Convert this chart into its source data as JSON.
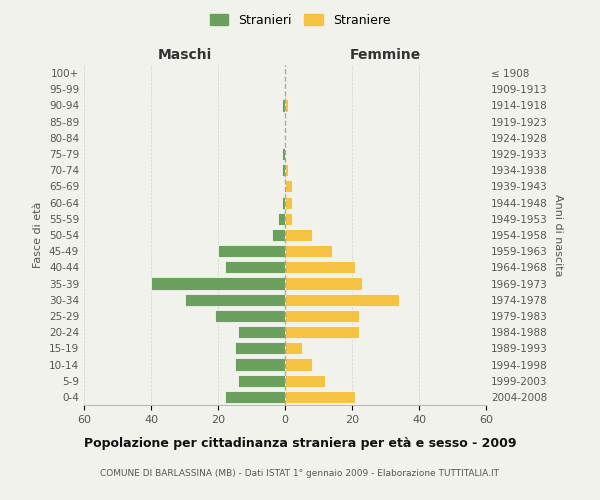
{
  "age_groups": [
    "100+",
    "95-99",
    "90-94",
    "85-89",
    "80-84",
    "75-79",
    "70-74",
    "65-69",
    "60-64",
    "55-59",
    "50-54",
    "45-49",
    "40-44",
    "35-39",
    "30-34",
    "25-29",
    "20-24",
    "15-19",
    "10-14",
    "5-9",
    "0-4"
  ],
  "birth_years": [
    "≤ 1908",
    "1909-1913",
    "1914-1918",
    "1919-1923",
    "1924-1928",
    "1929-1933",
    "1934-1938",
    "1939-1943",
    "1944-1948",
    "1949-1953",
    "1954-1958",
    "1959-1963",
    "1964-1968",
    "1969-1973",
    "1974-1978",
    "1979-1983",
    "1984-1988",
    "1989-1993",
    "1994-1998",
    "1999-2003",
    "2004-2008"
  ],
  "maschi": [
    0,
    0,
    1,
    0,
    0,
    1,
    1,
    0,
    1,
    2,
    4,
    20,
    18,
    40,
    30,
    21,
    14,
    15,
    15,
    14,
    18
  ],
  "femmine": [
    0,
    0,
    1,
    0,
    0,
    0,
    1,
    2,
    2,
    2,
    8,
    14,
    21,
    23,
    34,
    22,
    22,
    5,
    8,
    12,
    21
  ],
  "color_maschi": "#6a9f5e",
  "color_femmine": "#f5c242",
  "background_color": "#f2f2ed",
  "grid_color": "#d0d0d0",
  "xlim": 60,
  "title": "Popolazione per cittadinanza straniera per età e sesso - 2009",
  "subtitle": "COMUNE DI BARLASSINA (MB) - Dati ISTAT 1° gennaio 2009 - Elaborazione TUTTITALIA.IT",
  "legend_maschi": "Stranieri",
  "legend_femmine": "Straniere",
  "xlabel_left": "Maschi",
  "xlabel_right": "Femmine",
  "ylabel_left": "Fasce di età",
  "ylabel_right": "Anni di nascita"
}
